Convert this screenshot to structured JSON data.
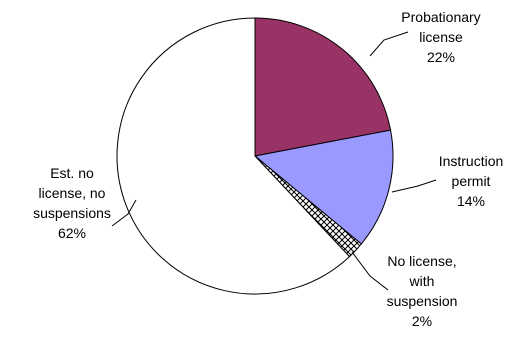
{
  "chart_data": {
    "type": "pie",
    "start_angle_deg": 0,
    "direction": "clockwise",
    "slices": [
      {
        "label_lines": [
          "Probationary",
          "license",
          "22%"
        ],
        "value": 22,
        "color": "#993366",
        "pattern": null
      },
      {
        "label_lines": [
          "Instruction",
          "permit",
          "14%"
        ],
        "value": 14,
        "color": "#9999ff",
        "pattern": null
      },
      {
        "label_lines": [
          "No license,",
          "with",
          "suspension",
          "2%"
        ],
        "value": 2,
        "color": "#ffffff",
        "pattern": "crosshatch"
      },
      {
        "label_lines": [
          "Est. no",
          "license, no",
          "suspensions",
          "62%"
        ],
        "value": 62,
        "color": "#ffffff",
        "pattern": null
      }
    ]
  }
}
